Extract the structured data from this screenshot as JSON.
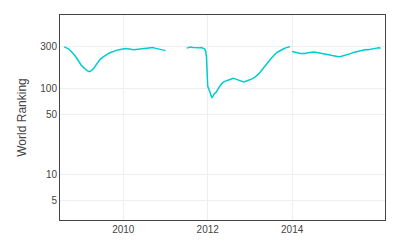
{
  "chart_data": {
    "type": "line",
    "ylabel": "World Ranking",
    "log": "y",
    "grid": true,
    "color": "#00CDCD",
    "xlim": [
      2008.5,
      2016.2
    ],
    "xticks": [
      2010,
      2012,
      2014
    ],
    "ylim": [
      3,
      700
    ],
    "yticks": [
      5,
      10,
      50,
      100,
      300
    ],
    "series": [
      {
        "color": "#00CDCD",
        "x": [
          2008.6,
          2008.65,
          2008.7,
          2008.75,
          2008.8,
          2008.85,
          2008.9,
          2008.95,
          2009.0,
          2009.05,
          2009.1,
          2009.15,
          2009.2,
          2009.25,
          2009.3,
          2009.35,
          2009.4,
          2009.45,
          2009.5,
          2009.55,
          2009.6,
          2009.65,
          2009.7,
          2009.75,
          2009.8,
          2009.85,
          2009.9,
          2009.95,
          2010.0,
          2010.05,
          2010.1,
          2010.15,
          2010.2,
          2010.25,
          2010.3,
          2010.35,
          2010.4,
          2010.45,
          2010.5,
          2010.55,
          2010.6,
          2010.65,
          2010.7,
          2010.75,
          2010.8,
          2010.85,
          2010.9,
          2010.95,
          2011.0
        ],
        "values": [
          300,
          295,
          285,
          270,
          255,
          240,
          220,
          200,
          185,
          175,
          165,
          158,
          155,
          160,
          170,
          185,
          200,
          215,
          225,
          235,
          245,
          252,
          258,
          265,
          270,
          275,
          278,
          282,
          285,
          287,
          285,
          282,
          280,
          278,
          280,
          282,
          284,
          282,
          285,
          287,
          290,
          293,
          295,
          290,
          285,
          282,
          278,
          275,
          272
        ]
      },
      {
        "color": "#00CDCD",
        "x": [
          2011.5,
          2011.55,
          2011.6,
          2011.65,
          2011.7,
          2011.75,
          2011.8,
          2011.85,
          2011.9,
          2011.92,
          2011.95,
          2011.97,
          2012.0,
          2012.02,
          2012.04,
          2012.06,
          2012.08,
          2012.1,
          2012.12,
          2012.15,
          2012.2,
          2012.25,
          2012.3,
          2012.35,
          2012.4,
          2012.45,
          2012.5,
          2012.55,
          2012.6,
          2012.65,
          2012.7,
          2012.75,
          2012.8,
          2012.85,
          2012.9,
          2012.95,
          2013.0,
          2013.05,
          2013.1,
          2013.15,
          2013.2,
          2013.25,
          2013.3,
          2013.35,
          2013.4,
          2013.45,
          2013.5,
          2013.55,
          2013.6,
          2013.65,
          2013.7,
          2013.75,
          2013.8,
          2013.85,
          2013.9,
          2013.95
        ],
        "values": [
          290,
          295,
          298,
          295,
          292,
          290,
          292,
          295,
          290,
          285,
          270,
          230,
          105,
          100,
          92,
          88,
          82,
          78,
          80,
          85,
          90,
          100,
          108,
          115,
          120,
          122,
          125,
          128,
          130,
          128,
          125,
          122,
          120,
          118,
          120,
          122,
          125,
          128,
          132,
          138,
          145,
          155,
          165,
          178,
          190,
          205,
          220,
          235,
          248,
          260,
          270,
          278,
          285,
          292,
          298,
          302
        ]
      },
      {
        "color": "#00CDCD",
        "x": [
          2014.0,
          2014.05,
          2014.1,
          2014.15,
          2014.2,
          2014.25,
          2014.3,
          2014.35,
          2014.4,
          2014.45,
          2014.5,
          2014.55,
          2014.6,
          2014.65,
          2014.7,
          2014.75,
          2014.8,
          2014.85,
          2014.9,
          2014.95,
          2015.0,
          2015.05,
          2015.1,
          2015.15,
          2015.2,
          2015.25,
          2015.3,
          2015.35,
          2015.4,
          2015.45,
          2015.5,
          2015.55,
          2015.6,
          2015.65,
          2015.7,
          2015.75,
          2015.8,
          2015.85,
          2015.9,
          2015.95,
          2016.0,
          2016.05,
          2016.1
        ],
        "values": [
          265,
          260,
          258,
          255,
          252,
          250,
          252,
          255,
          258,
          260,
          262,
          260,
          258,
          255,
          252,
          250,
          248,
          245,
          242,
          238,
          235,
          232,
          230,
          232,
          235,
          238,
          242,
          248,
          252,
          258,
          262,
          268,
          272,
          276,
          278,
          280,
          278,
          282,
          285,
          288,
          290,
          292,
          290
        ]
      }
    ]
  }
}
